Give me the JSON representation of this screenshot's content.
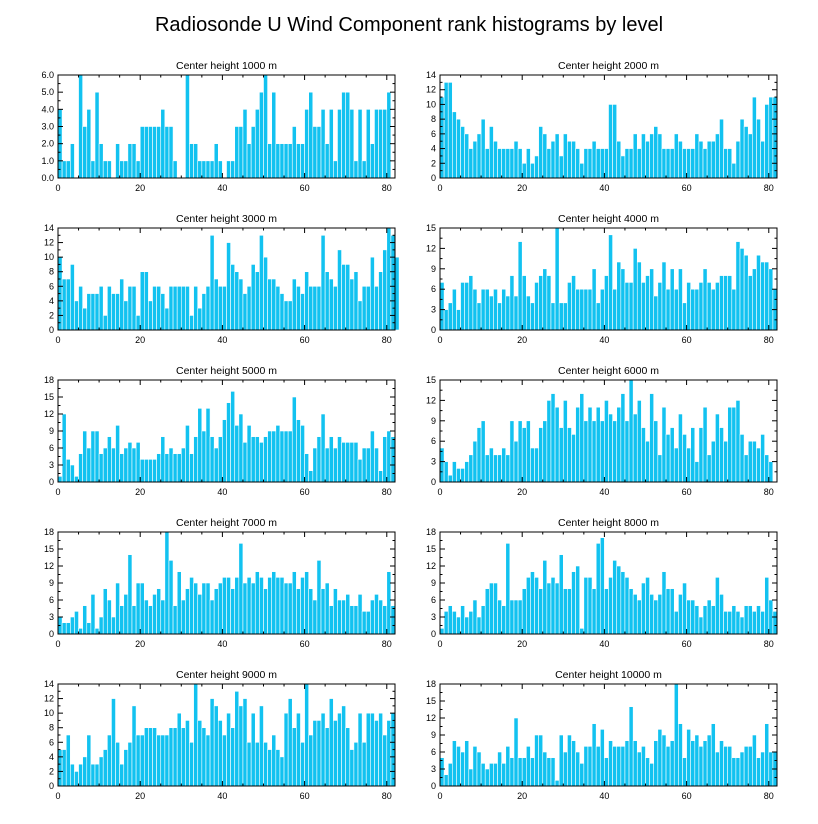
{
  "figure": {
    "title": "Radiosonde U Wind Component rank histograms by level",
    "bar_color": "#12c2f0",
    "bar_edge_color": "#ffffff",
    "frame_color": "#000000"
  },
  "chart_data": [
    {
      "type": "bar",
      "title": "Center height 1000 m",
      "x_start": 0,
      "xlim": [
        0,
        82
      ],
      "xticks": [
        0,
        20,
        40,
        60,
        80
      ],
      "ylim": [
        0,
        6
      ],
      "yticks": [
        0,
        1,
        2,
        3,
        4,
        5,
        6
      ],
      "ytick_labels": [
        "0.0",
        "1.0",
        "2.0",
        "3.0",
        "4.0",
        "5.0",
        "6.0"
      ],
      "values": [
        4,
        1,
        1,
        2,
        0,
        6,
        3,
        4,
        1,
        5,
        2,
        1,
        1,
        0,
        2,
        1,
        1,
        2,
        2,
        1,
        3,
        3,
        3,
        3,
        3,
        4,
        3,
        3,
        1,
        0,
        0,
        6,
        2,
        2,
        1,
        1,
        1,
        1,
        2,
        1,
        0,
        1,
        1,
        3,
        3,
        4,
        2,
        3,
        4,
        5,
        6,
        2,
        5,
        2,
        2,
        2,
        2,
        3,
        2,
        2,
        4,
        5,
        3,
        3,
        4,
        2,
        4,
        1,
        4,
        5,
        5,
        4,
        1,
        4,
        1,
        4,
        2,
        4,
        4,
        4,
        5
      ]
    },
    {
      "type": "bar",
      "title": "Center height 2000 m",
      "x_start": 0,
      "xlim": [
        0,
        82
      ],
      "xticks": [
        0,
        20,
        40,
        60,
        80
      ],
      "ylim": [
        0,
        14
      ],
      "yticks": [
        0,
        2,
        4,
        6,
        8,
        10,
        12,
        14
      ],
      "ytick_labels": [
        "0",
        "2",
        "4",
        "6",
        "8",
        "10",
        "12",
        "14"
      ],
      "values": [
        11,
        13,
        13,
        9,
        8,
        7,
        6,
        4,
        5,
        6,
        8,
        4,
        7,
        5,
        4,
        4,
        4,
        4,
        5,
        4,
        2,
        4,
        2,
        3,
        7,
        6,
        4,
        5,
        6,
        3,
        6,
        5,
        5,
        4,
        2,
        4,
        4,
        5,
        4,
        4,
        4,
        10,
        10,
        5,
        3,
        4,
        4,
        6,
        4,
        6,
        5,
        6,
        7,
        6,
        4,
        4,
        4,
        6,
        5,
        4,
        4,
        4,
        6,
        5,
        4,
        5,
        5,
        6,
        8,
        4,
        4,
        2,
        5,
        8,
        7,
        6,
        11,
        8,
        5,
        10,
        11,
        11
      ]
    },
    {
      "type": "bar",
      "title": "Center height 3000 m",
      "x_start": 0,
      "xlim": [
        0,
        82
      ],
      "xticks": [
        0,
        20,
        40,
        60,
        80
      ],
      "ylim": [
        0,
        14
      ],
      "yticks": [
        0,
        2,
        4,
        6,
        8,
        10,
        12,
        14
      ],
      "ytick_labels": [
        "0",
        "2",
        "4",
        "6",
        "8",
        "10",
        "12",
        "14"
      ],
      "values": [
        10,
        7,
        7,
        9,
        4,
        6,
        3,
        5,
        5,
        5,
        6,
        2,
        6,
        5,
        5,
        7,
        4,
        6,
        6,
        2,
        8,
        8,
        4,
        6,
        6,
        5,
        3,
        6,
        6,
        6,
        6,
        6,
        2,
        6,
        3,
        5,
        6,
        13,
        7,
        6,
        6,
        12,
        9,
        8,
        7,
        5,
        6,
        9,
        8,
        13,
        10,
        7,
        7,
        6,
        5,
        4,
        4,
        7,
        6,
        5,
        8,
        6,
        6,
        6,
        13,
        8,
        7,
        6,
        11,
        9,
        9,
        7,
        8,
        4,
        6,
        6,
        10,
        6,
        8,
        11,
        14,
        13,
        10
      ]
    },
    {
      "type": "bar",
      "title": "Center height 4000 m",
      "x_start": 0,
      "xlim": [
        0,
        82
      ],
      "xticks": [
        0,
        20,
        40,
        60,
        80
      ],
      "ylim": [
        0,
        15
      ],
      "yticks": [
        0,
        3,
        6,
        9,
        12,
        15
      ],
      "ytick_labels": [
        "0",
        "3",
        "6",
        "9",
        "12",
        "15"
      ],
      "values": [
        7,
        3,
        4,
        6,
        3,
        7,
        7,
        8,
        6,
        4,
        6,
        6,
        5,
        6,
        4,
        6,
        5,
        8,
        5,
        13,
        8,
        5,
        4,
        7,
        8,
        9,
        8,
        4,
        15,
        4,
        4,
        7,
        8,
        6,
        6,
        6,
        6,
        9,
        4,
        6,
        8,
        14,
        6,
        10,
        9,
        7,
        7,
        12,
        10,
        7,
        8,
        9,
        5,
        7,
        10,
        6,
        9,
        6,
        9,
        4,
        7,
        6,
        6,
        7,
        9,
        7,
        6,
        7,
        8,
        8,
        8,
        6,
        13,
        12,
        11,
        8,
        9,
        11,
        10,
        10,
        9,
        6
      ]
    },
    {
      "type": "bar",
      "title": "Center height 5000 m",
      "x_start": 0,
      "xlim": [
        0,
        82
      ],
      "xticks": [
        0,
        20,
        40,
        60,
        80
      ],
      "ylim": [
        0,
        18
      ],
      "yticks": [
        0,
        3,
        6,
        9,
        12,
        15,
        18
      ],
      "ytick_labels": [
        "0",
        "3",
        "6",
        "9",
        "12",
        "15",
        "18"
      ],
      "values": [
        1,
        12,
        4,
        3,
        1,
        5,
        9,
        6,
        9,
        9,
        5,
        6,
        8,
        6,
        10,
        5,
        6,
        7,
        6,
        7,
        4,
        4,
        4,
        4,
        5,
        8,
        5,
        6,
        5,
        5,
        6,
        10,
        5,
        8,
        13,
        9,
        13,
        8,
        6,
        8,
        11,
        14,
        16,
        10,
        12,
        7,
        10,
        8,
        8,
        7,
        8,
        9,
        9,
        10,
        9,
        9,
        9,
        15,
        11,
        10,
        5,
        2,
        6,
        8,
        12,
        6,
        8,
        6,
        8,
        7,
        7,
        7,
        7,
        4,
        6,
        6,
        9,
        6,
        2,
        8,
        9,
        8
      ]
    },
    {
      "type": "bar",
      "title": "Center height 6000 m",
      "x_start": 0,
      "xlim": [
        0,
        82
      ],
      "xticks": [
        0,
        20,
        40,
        60,
        80
      ],
      "ylim": [
        0,
        15
      ],
      "yticks": [
        0,
        3,
        6,
        9,
        12,
        15
      ],
      "ytick_labels": [
        "0",
        "3",
        "6",
        "9",
        "12",
        "15"
      ],
      "values": [
        5,
        3,
        1,
        3,
        2,
        2,
        3,
        4,
        6,
        8,
        9,
        4,
        5,
        4,
        4,
        5,
        4,
        9,
        6,
        9,
        8,
        9,
        5,
        5,
        8,
        9,
        12,
        13,
        11,
        8,
        12,
        8,
        7,
        11,
        13,
        9,
        11,
        9,
        11,
        9,
        12,
        10,
        9,
        11,
        13,
        9,
        15,
        10,
        12,
        8,
        6,
        13,
        9,
        4,
        11,
        7,
        8,
        5,
        10,
        7,
        5,
        8,
        3,
        8,
        11,
        4,
        6,
        10,
        8,
        6,
        11,
        11,
        12,
        7,
        4,
        6,
        6,
        5,
        7,
        4,
        3
      ]
    },
    {
      "type": "bar",
      "title": "Center height 7000 m",
      "x_start": 0,
      "xlim": [
        0,
        82
      ],
      "xticks": [
        0,
        20,
        40,
        60,
        80
      ],
      "ylim": [
        0,
        18
      ],
      "yticks": [
        0,
        3,
        6,
        9,
        12,
        15,
        18
      ],
      "ytick_labels": [
        "0",
        "3",
        "6",
        "9",
        "12",
        "15",
        "18"
      ],
      "values": [
        3,
        2,
        2,
        3,
        4,
        1,
        5,
        2,
        7,
        1,
        3,
        8,
        6,
        3,
        9,
        5,
        7,
        14,
        5,
        9,
        9,
        6,
        5,
        7,
        8,
        6,
        18,
        13,
        5,
        11,
        6,
        8,
        10,
        9,
        7,
        9,
        9,
        6,
        8,
        9,
        10,
        10,
        8,
        10,
        16,
        9,
        10,
        9,
        11,
        10,
        8,
        10,
        11,
        10,
        10,
        9,
        9,
        11,
        8,
        10,
        11,
        8,
        6,
        13,
        8,
        9,
        5,
        8,
        6,
        6,
        7,
        5,
        5,
        7,
        4,
        4,
        6,
        7,
        6,
        5,
        11,
        5
      ]
    },
    {
      "type": "bar",
      "title": "Center height 8000 m",
      "x_start": 0,
      "xlim": [
        0,
        82
      ],
      "xticks": [
        0,
        20,
        40,
        60,
        80
      ],
      "ylim": [
        0,
        18
      ],
      "yticks": [
        0,
        3,
        6,
        9,
        12,
        15,
        18
      ],
      "ytick_labels": [
        "0",
        "3",
        "6",
        "9",
        "12",
        "15",
        "18"
      ],
      "values": [
        1,
        4,
        5,
        4,
        3,
        5,
        3,
        4,
        6,
        3,
        5,
        8,
        9,
        9,
        6,
        5,
        16,
        6,
        6,
        6,
        8,
        10,
        11,
        10,
        8,
        13,
        9,
        10,
        9,
        14,
        8,
        8,
        11,
        12,
        1,
        10,
        10,
        8,
        16,
        17,
        8,
        10,
        13,
        12,
        11,
        10,
        8,
        7,
        6,
        9,
        10,
        7,
        6,
        7,
        11,
        8,
        8,
        4,
        7,
        9,
        6,
        6,
        5,
        3,
        5,
        6,
        5,
        10,
        7,
        4,
        4,
        5,
        4,
        3,
        5,
        5,
        4,
        5,
        4,
        10,
        6,
        4
      ]
    },
    {
      "type": "bar",
      "title": "Center height 9000 m",
      "x_start": 0,
      "xlim": [
        0,
        82
      ],
      "xticks": [
        0,
        20,
        40,
        60,
        80
      ],
      "ylim": [
        0,
        14
      ],
      "yticks": [
        0,
        2,
        4,
        6,
        8,
        10,
        12,
        14
      ],
      "ytick_labels": [
        "0",
        "2",
        "4",
        "6",
        "8",
        "10",
        "12",
        "14"
      ],
      "values": [
        5,
        5,
        7,
        3,
        2,
        3,
        4,
        7,
        3,
        3,
        4,
        5,
        7,
        12,
        6,
        3,
        5,
        6,
        11,
        7,
        7,
        8,
        8,
        8,
        7,
        7,
        7,
        8,
        8,
        10,
        8,
        9,
        6,
        14,
        9,
        8,
        7,
        12,
        11,
        9,
        7,
        10,
        8,
        13,
        11,
        12,
        6,
        10,
        6,
        11,
        6,
        5,
        7,
        5,
        4,
        10,
        12,
        8,
        10,
        6,
        14,
        7,
        9,
        9,
        10,
        8,
        12,
        9,
        10,
        11,
        8,
        5,
        6,
        10,
        6,
        10,
        10,
        9,
        10,
        7,
        9,
        10
      ]
    },
    {
      "type": "bar",
      "title": "Center height 10000 m",
      "x_start": 0,
      "xlim": [
        0,
        82
      ],
      "xticks": [
        0,
        20,
        40,
        60,
        80
      ],
      "ylim": [
        0,
        18
      ],
      "yticks": [
        0,
        3,
        6,
        9,
        12,
        15,
        18
      ],
      "ytick_labels": [
        "0",
        "3",
        "6",
        "9",
        "12",
        "15",
        "18"
      ],
      "values": [
        5,
        2,
        4,
        8,
        7,
        6,
        8,
        3,
        7,
        6,
        4,
        3,
        4,
        4,
        6,
        4,
        7,
        5,
        12,
        5,
        5,
        7,
        5,
        9,
        9,
        6,
        5,
        5,
        1,
        9,
        6,
        9,
        8,
        6,
        4,
        7,
        7,
        11,
        7,
        10,
        5,
        8,
        7,
        7,
        7,
        8,
        14,
        8,
        6,
        7,
        5,
        4,
        8,
        10,
        9,
        7,
        8,
        18,
        11,
        5,
        10,
        8,
        9,
        7,
        8,
        9,
        11,
        6,
        8,
        7,
        7,
        5,
        5,
        6,
        7,
        7,
        9,
        5,
        6,
        11,
        6,
        6
      ]
    }
  ]
}
